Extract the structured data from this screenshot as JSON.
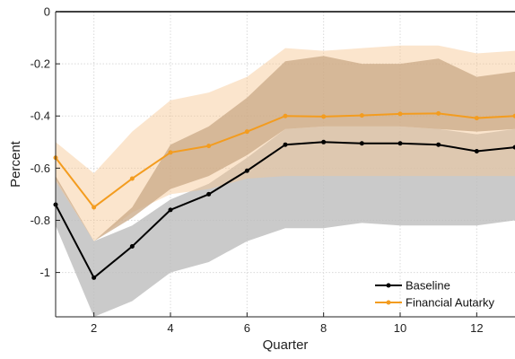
{
  "chart_data": {
    "type": "line",
    "title": "",
    "xlabel": "Quarter",
    "ylabel": "Percent",
    "xlim": [
      1,
      13
    ],
    "ylim": [
      -1.17,
      0
    ],
    "x_ticks": [
      2,
      4,
      6,
      8,
      10,
      12
    ],
    "y_ticks": [
      0,
      -0.2,
      -0.4,
      -0.6,
      -0.8,
      -1
    ],
    "x_tick_labels": [
      "2",
      "4",
      "6",
      "8",
      "10",
      "12"
    ],
    "y_tick_labels": [
      "0",
      "-0.2",
      "-0.4",
      "-0.6",
      "-0.8",
      "-1"
    ],
    "grid": true,
    "legend_position": "bottom-right",
    "x": [
      1,
      2,
      3,
      4,
      5,
      6,
      7,
      8,
      9,
      10,
      11,
      12,
      13
    ],
    "series": [
      {
        "name": "Baseline",
        "color": "#000000",
        "band_color": "#bdbdbd",
        "values": [
          -0.74,
          -1.02,
          -0.9,
          -0.76,
          -0.7,
          -0.61,
          -0.51,
          -0.5,
          -0.505,
          -0.505,
          -0.51,
          -0.535,
          -0.52
        ],
        "lower": [
          -0.82,
          -1.17,
          -1.11,
          -1.0,
          -0.96,
          -0.88,
          -0.83,
          -0.83,
          -0.81,
          -0.82,
          -0.82,
          -0.82,
          -0.8
        ],
        "upper": [
          -0.64,
          -0.88,
          -0.82,
          -0.72,
          -0.66,
          -0.56,
          -0.45,
          -0.44,
          -0.44,
          -0.44,
          -0.45,
          -0.47,
          -0.45
        ]
      },
      {
        "name": "Financial Autarky",
        "color": "#f39c1f",
        "band_color": "#f7c690",
        "values": [
          -0.56,
          -0.75,
          -0.64,
          -0.54,
          -0.515,
          -0.46,
          -0.4,
          -0.402,
          -0.398,
          -0.392,
          -0.39,
          -0.408,
          -0.4
        ],
        "lower": [
          -0.65,
          -0.88,
          -0.77,
          -0.7,
          -0.68,
          -0.64,
          -0.63,
          -0.63,
          -0.63,
          -0.63,
          -0.63,
          -0.63,
          -0.63
        ],
        "upper": [
          -0.5,
          -0.62,
          -0.46,
          -0.34,
          -0.31,
          -0.25,
          -0.14,
          -0.15,
          -0.14,
          -0.13,
          -0.13,
          -0.16,
          -0.15
        ]
      }
    ],
    "inner_band": {
      "color": "#c9a886",
      "lower": [
        -0.64,
        -0.88,
        -0.79,
        -0.68,
        -0.63,
        -0.55,
        -0.45,
        -0.44,
        -0.44,
        -0.44,
        -0.45,
        -0.46,
        -0.45
      ],
      "upper": [
        -0.63,
        -0.88,
        -0.75,
        -0.51,
        -0.44,
        -0.33,
        -0.19,
        -0.17,
        -0.2,
        -0.2,
        -0.18,
        -0.25,
        -0.23
      ]
    }
  }
}
